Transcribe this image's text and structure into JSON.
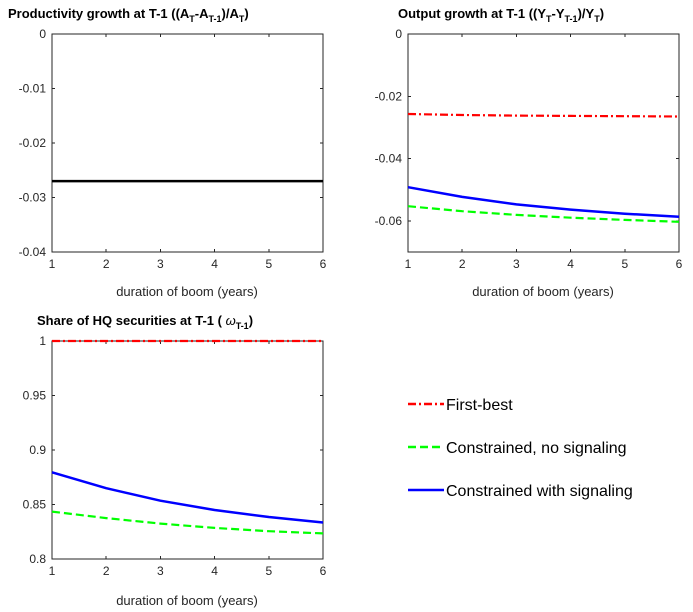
{
  "chart_data": [
    {
      "type": "line",
      "title": {
        "p1": "Productivity growth at T-1 ((A",
        "sub1": "T",
        "p2": "-A",
        "sub2": "T-1",
        "p3": ")/A",
        "sub3": "T",
        "p4": ")"
      },
      "xlabel": "duration of boom (years)",
      "xlim": [
        1,
        6
      ],
      "ylim": [
        -0.04,
        0
      ],
      "xticks": [
        "1",
        "2",
        "3",
        "4",
        "5",
        "6"
      ],
      "yticks": [
        "-0.04",
        "-0.03",
        "-0.02",
        "-0.01",
        "0"
      ],
      "x": [
        1,
        2,
        3,
        4,
        5,
        6
      ],
      "series": [
        {
          "style": "solid",
          "color": "#000000",
          "values": [
            -0.027,
            -0.027,
            -0.027,
            -0.027,
            -0.027,
            -0.027
          ]
        }
      ]
    },
    {
      "type": "line",
      "title": {
        "p1": "Output growth at T-1 ((Y",
        "sub1": "T",
        "p2": "-Y",
        "sub2": "T-1",
        "p3": ")/Y",
        "sub3": "T",
        "p4": ")"
      },
      "xlabel": "duration of boom (years)",
      "xlim": [
        1,
        6
      ],
      "ylim": [
        -0.07,
        0
      ],
      "xticks": [
        "1",
        "2",
        "3",
        "4",
        "5",
        "6"
      ],
      "yticks": [
        "-0.06",
        "-0.04",
        "-0.02",
        "0"
      ],
      "x": [
        1,
        2,
        3,
        4,
        5,
        6
      ],
      "series": [
        {
          "name": "First-best",
          "style": "dashdot",
          "color": "#ff0000",
          "values": [
            -0.0257,
            -0.026,
            -0.0262,
            -0.0263,
            -0.0264,
            -0.0265
          ]
        },
        {
          "name": "Constrained, no signaling",
          "style": "dashed",
          "color": "#00ff00",
          "values": [
            -0.0553,
            -0.0569,
            -0.0581,
            -0.059,
            -0.0597,
            -0.0603
          ]
        },
        {
          "name": "Constrained with signaling",
          "style": "solid",
          "color": "#0000ff",
          "values": [
            -0.0492,
            -0.0523,
            -0.0547,
            -0.0564,
            -0.0577,
            -0.0587
          ]
        }
      ]
    },
    {
      "type": "line",
      "title": {
        "p1": "Share of HQ securities at T-1 ( ",
        "omega": "ω",
        "sub1": "T-1",
        "p4": ")"
      },
      "xlabel": "duration of boom (years)",
      "xlim": [
        1,
        6
      ],
      "ylim": [
        0.8,
        1
      ],
      "xticks": [
        "1",
        "2",
        "3",
        "4",
        "5",
        "6"
      ],
      "yticks": [
        "0.8",
        "0.85",
        "0.9",
        "0.95",
        "1"
      ],
      "x": [
        1,
        2,
        3,
        4,
        5,
        6
      ],
      "series": [
        {
          "name": "First-best",
          "style": "dashdot",
          "color": "#ff0000",
          "values": [
            1.0,
            1.0,
            1.0,
            1.0,
            1.0,
            1.0
          ]
        },
        {
          "name": "Constrained, no signaling",
          "style": "dashed",
          "color": "#00ff00",
          "values": [
            0.8435,
            0.8375,
            0.8325,
            0.8285,
            0.8255,
            0.8235
          ]
        },
        {
          "name": "Constrained with signaling",
          "style": "solid",
          "color": "#0000ff",
          "values": [
            0.8795,
            0.865,
            0.8535,
            0.845,
            0.8385,
            0.8335
          ]
        }
      ]
    }
  ],
  "legend": [
    {
      "label": "First-best",
      "style": "dashdot",
      "color": "#ff0000"
    },
    {
      "label": "Constrained, no signaling",
      "style": "dashed",
      "color": "#00ff00"
    },
    {
      "label": "Constrained with signaling",
      "style": "solid",
      "color": "#0000ff"
    }
  ]
}
